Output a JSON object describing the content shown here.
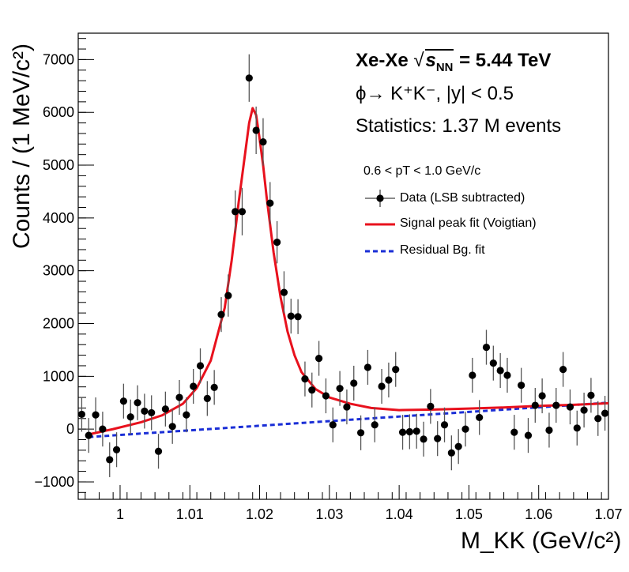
{
  "annotations": {
    "system": "Xe-Xe",
    "sqrt_symbol": "√",
    "s_label": "s",
    "s_sub": "NN",
    "energy": "= 5.44 TeV",
    "decay": "ϕ→ K⁺K⁻, |y| < 0.5",
    "stats": "Statistics: 1.37 M events",
    "pt_range": "0.6 < pT < 1.0 GeV/c"
  },
  "colors": {
    "data": "#000000",
    "signal": "#e8111d",
    "background": "#1a2ed6"
  },
  "chart_data": {
    "type": "scatter",
    "title": "",
    "xlabel": "M_KK (GeV/c²)",
    "ylabel": "Counts / (1 MeV/c²)",
    "xlim": [
      0.994,
      1.07
    ],
    "ylim": [
      -1330,
      7500
    ],
    "x_ticks": [
      1,
      1.01,
      1.02,
      1.03,
      1.04,
      1.05,
      1.06,
      1.07
    ],
    "x_tick_labels": [
      "1",
      "1.01",
      "1.02",
      "1.03",
      "1.04",
      "1.05",
      "1.06",
      "1.07"
    ],
    "y_ticks": [
      -1000,
      0,
      1000,
      2000,
      3000,
      4000,
      5000,
      6000,
      7000
    ],
    "y_tick_labels": [
      "−1000",
      "0",
      "1000",
      "2000",
      "3000",
      "4000",
      "5000",
      "6000",
      "7000"
    ],
    "legend": {
      "placement": "top-right",
      "entries": [
        "Data (LSB subtracted)",
        "Signal peak fit (Voigtian)",
        "Residual Bg. fit"
      ]
    },
    "series": [
      {
        "name": "Data (LSB subtracted)",
        "kind": "points",
        "x": [
          0.9945,
          0.9955,
          0.9965,
          0.9975,
          0.9985,
          0.9995,
          1.0005,
          1.0015,
          1.0025,
          1.0035,
          1.0045,
          1.0055,
          1.0065,
          1.0075,
          1.0085,
          1.0095,
          1.0105,
          1.0115,
          1.0125,
          1.0135,
          1.0145,
          1.0155,
          1.0165,
          1.0175,
          1.0185,
          1.0195,
          1.0205,
          1.0215,
          1.0225,
          1.0235,
          1.0245,
          1.0255,
          1.0265,
          1.0275,
          1.0285,
          1.0295,
          1.0305,
          1.0315,
          1.0325,
          1.0335,
          1.0345,
          1.0355,
          1.0365,
          1.0375,
          1.0385,
          1.0395,
          1.0405,
          1.0415,
          1.0425,
          1.0435,
          1.0445,
          1.0455,
          1.0465,
          1.0475,
          1.0485,
          1.0495,
          1.0505,
          1.0515,
          1.0525,
          1.0535,
          1.0545,
          1.0555,
          1.0565,
          1.0575,
          1.0585,
          1.0595,
          1.0605,
          1.0615,
          1.0625,
          1.0635,
          1.0645,
          1.0655,
          1.0665,
          1.0675,
          1.0685,
          1.0695
        ],
        "y": [
          280,
          -120,
          270,
          0,
          -580,
          -390,
          530,
          230,
          500,
          340,
          310,
          -420,
          380,
          50,
          600,
          270,
          810,
          1200,
          580,
          790,
          2170,
          2530,
          4120,
          4120,
          6650,
          5660,
          5440,
          4280,
          3540,
          2590,
          2140,
          2130,
          950,
          740,
          1340,
          630,
          80,
          770,
          420,
          870,
          -70,
          1170,
          80,
          810,
          930,
          1130,
          -60,
          -50,
          -40,
          -190,
          430,
          -180,
          80,
          -450,
          -330,
          0,
          1020,
          220,
          1550,
          1250,
          1110,
          1020,
          -60,
          830,
          -120,
          450,
          630,
          -20,
          450,
          1130,
          420,
          20,
          360,
          640,
          200,
          300
        ],
        "err": [
          330,
          330,
          330,
          330,
          330,
          330,
          330,
          330,
          330,
          330,
          330,
          330,
          330,
          330,
          330,
          330,
          330,
          330,
          330,
          330,
          330,
          400,
          400,
          450,
          450,
          450,
          450,
          400,
          400,
          400,
          330,
          330,
          330,
          330,
          330,
          330,
          330,
          330,
          330,
          330,
          330,
          330,
          330,
          330,
          330,
          330,
          330,
          330,
          330,
          330,
          330,
          330,
          330,
          330,
          330,
          330,
          330,
          330,
          330,
          330,
          330,
          330,
          330,
          330,
          330,
          330,
          330,
          330,
          330,
          330,
          330,
          330,
          330,
          330,
          330,
          330
        ]
      },
      {
        "name": "Signal peak fit (Voigtian)",
        "kind": "line",
        "x": [
          0.9955,
          0.999,
          1.003,
          1.006,
          1.009,
          1.011,
          1.013,
          1.015,
          1.016,
          1.017,
          1.018,
          1.0185,
          1.019,
          1.0195,
          1.02,
          1.0205,
          1.021,
          1.022,
          1.023,
          1.024,
          1.025,
          1.026,
          1.028,
          1.03,
          1.033,
          1.036,
          1.04,
          1.045,
          1.05,
          1.055,
          1.06,
          1.065,
          1.07
        ],
        "y": [
          -100,
          0,
          130,
          260,
          480,
          780,
          1300,
          2300,
          3200,
          4300,
          5300,
          5800,
          6080,
          5950,
          5500,
          5000,
          4400,
          3350,
          2500,
          1850,
          1400,
          1080,
          760,
          600,
          480,
          400,
          360,
          370,
          390,
          410,
          440,
          460,
          490
        ]
      },
      {
        "name": "Residual Bg. fit",
        "kind": "dashed-line",
        "x": [
          0.9955,
          1.07
        ],
        "y": [
          -150,
          500
        ]
      }
    ]
  }
}
